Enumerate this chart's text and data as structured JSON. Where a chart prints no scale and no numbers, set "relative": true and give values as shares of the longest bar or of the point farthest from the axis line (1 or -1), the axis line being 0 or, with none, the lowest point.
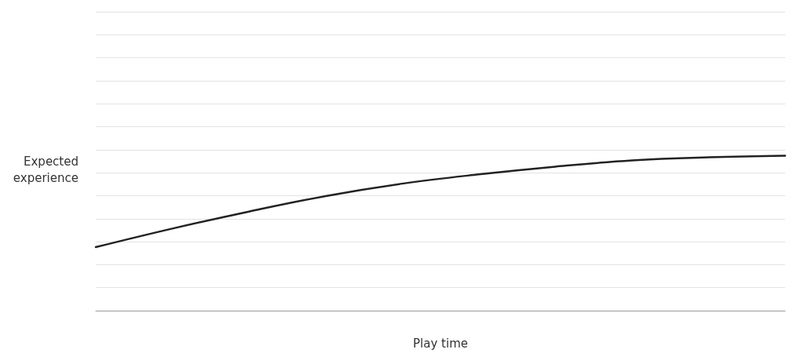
{
  "chart_data": {
    "type": "line",
    "xlabel": "Play time",
    "ylabel": "Expected\nexperience",
    "relative": true,
    "grid": "y",
    "marker": "none",
    "line_style": "solid",
    "categories": [
      null,
      null,
      null,
      null,
      null,
      null,
      null,
      null,
      null,
      null
    ],
    "series": [
      {
        "color": "#222222",
        "values": [
          0.41,
          0.53,
          0.64,
          0.74,
          0.82,
          0.88,
          0.93,
          0.97,
          0.99,
          1.0
        ]
      }
    ]
  }
}
